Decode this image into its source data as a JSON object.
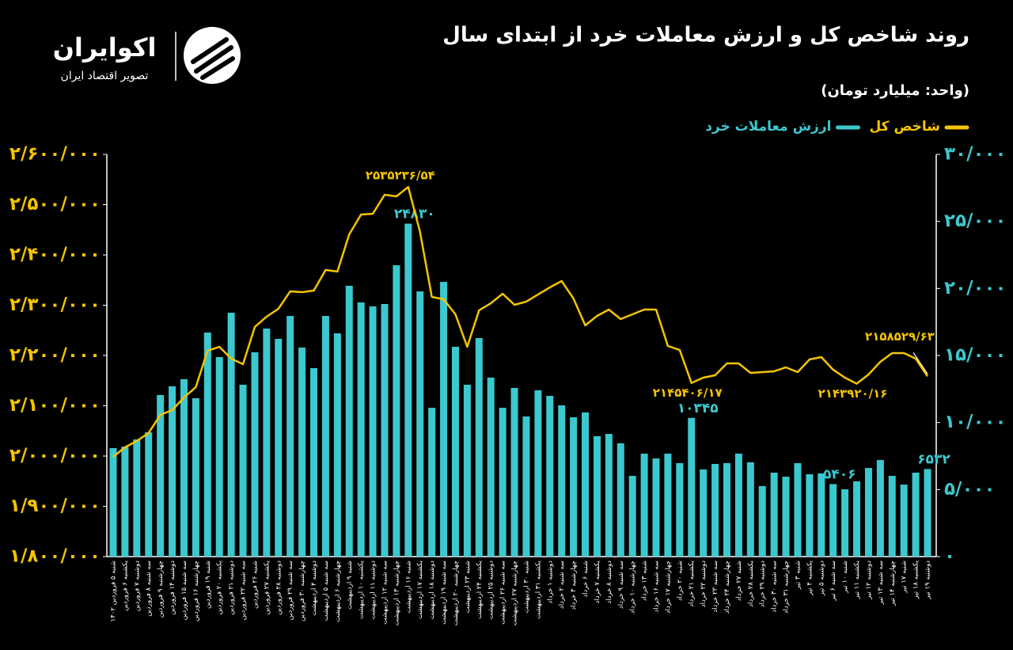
{
  "brand": {
    "name": "اکوایران",
    "tagline": "تصویر اقتصاد ایران"
  },
  "chart_data": {
    "type": "combo",
    "title": "روند شاخص کل و ارزش معاملات خرد از ابتدای سال",
    "subtitle": "(واحد: میلیارد تومان)",
    "categories": [
      "شنبه ۵ فروردین ۱۴۰۲",
      "یکشنبه ۶ فروردین",
      "دوشنبه ۷ فروردین",
      "سه شنبه ۸ فروردین",
      "چهارشنبه ۹ فروردین",
      "دوشنبه ۱۴ فروردین",
      "سه شنبه ۱۵ فروردین",
      "چهارشنبه ۱۶ فروردین",
      "شنبه ۱۹ فروردین",
      "یکشنبه ۲۰ فروردین",
      "دوشنبه ۲۱ فروردین",
      "سه شنبه ۲۲ فروردین",
      "شنبه ۲۶ فروردین",
      "یکشنبه ۲۷ فروردین",
      "دوشنبه ۲۸ فروردین",
      "سه شنبه ۲۹ فروردین",
      "چهارشنبه ۳۰ فروردین",
      "دوشنبه ۴ اردیبهشت",
      "سه شنبه ۵ اردیبهشت",
      "چهارشنبه ۶ اردیبهشت",
      "شنبه ۹ اردیبهشت",
      "یکشنبه ۱۰ اردیبهشت",
      "دوشنبه ۱۱ اردیبهشت",
      "سه شنبه ۱۲ اردیبهشت",
      "چهارشنبه ۱۳ اردیبهشت",
      "شنبه ۱۶ اردیبهشت",
      "یکشنبه ۱۷ اردیبهشت",
      "دوشنبه ۱۸ اردیبهشت",
      "سه شنبه ۱۹ اردیبهشت",
      "چهارشنبه ۲۰ اردیبهشت",
      "شنبه ۲۳ اردیبهشت",
      "یکشنبه ۲۴ اردیبهشت",
      "دوشنبه ۲۵ اردیبهشت",
      "سه شنبه ۲۶ اردیبهشت",
      "چهارشنبه ۲۷ اردیبهشت",
      "شنبه ۳۰ اردیبهشت",
      "یکشنبه ۳۱ اردیبهشت",
      "دوشنبه ۱ خرداد",
      "سه شنبه ۲ خرداد",
      "چهارشنبه ۳ خرداد",
      "شنبه ۶ خرداد",
      "یکشنبه ۷ خرداد",
      "دوشنبه ۸ خرداد",
      "سه شنبه ۹ خرداد",
      "چهارشنبه ۱۰ خرداد",
      "شنبه ۱۳ خرداد",
      "سه شنبه ۱۶ خرداد",
      "چهارشنبه ۱۷ خرداد",
      "شنبه ۲۰ خرداد",
      "یکشنبه ۲۱ خرداد",
      "دوشنبه ۲۲ خرداد",
      "سه شنبه ۲۳ خرداد",
      "چهارشنبه ۲۴ خرداد",
      "شنبه ۲۷ خرداد",
      "یکشنبه ۲۸ خرداد",
      "دوشنبه ۲۹ خرداد",
      "سه شنبه ۳۰ خرداد",
      "چهارشنبه ۳۱ خرداد",
      "شنبه ۳ تیر",
      "یکشنبه ۴ تیر",
      "دوشنبه ۵ تیر",
      "سه شنبه ۶ تیر",
      "شنبه ۱۰ تیر",
      "یکشنبه ۱۱ تیر",
      "دوشنبه ۱۲ تیر",
      "سه شنبه ۱۳ تیر",
      "چهارشنبه ۱۴ تیر",
      "شنبه ۱۷ تیر",
      "یکشنبه ۱۸ تیر",
      "دوشنبه ۱۹ تیر"
    ],
    "series": [
      {
        "name": "شاخص کل",
        "type": "line",
        "color": "#f5c400",
        "values": [
          1998400,
          2017300,
          2029900,
          2045700,
          2081900,
          2091300,
          2116500,
          2137000,
          2209400,
          2217300,
          2193700,
          2182700,
          2256700,
          2277200,
          2292900,
          2327600,
          2326000,
          2329100,
          2370100,
          2366900,
          2440900,
          2480300,
          2481900,
          2519700,
          2516500,
          2535236.54,
          2445700,
          2316500,
          2311800,
          2281900,
          2217300,
          2289800,
          2303900,
          2322800,
          2300800,
          2307100,
          2321300,
          2335400,
          2348000,
          2313400,
          2259800,
          2278700,
          2291300,
          2272400,
          2281900,
          2291300,
          2291300,
          2218900,
          2211000,
          2145406.17,
          2155900,
          2160600,
          2184300,
          2184300,
          2165400,
          2166900,
          2168500,
          2176400,
          2166900,
          2192100,
          2196900,
          2171700,
          2155900,
          2143920.16,
          2162200,
          2187400,
          2204700,
          2204700,
          2193700,
          2158529.63
        ],
        "value_labels": [
          null,
          null,
          null,
          null,
          null,
          null,
          null,
          null,
          null,
          null,
          null,
          null,
          null,
          null,
          null,
          null,
          null,
          null,
          null,
          null,
          null,
          null,
          null,
          null,
          null,
          "۲۵۳۵۲۳۶/۵۴",
          null,
          null,
          null,
          null,
          null,
          null,
          null,
          null,
          null,
          null,
          null,
          null,
          null,
          null,
          null,
          null,
          null,
          null,
          null,
          null,
          null,
          null,
          null,
          "۲۱۴۵۴۰۶/۱۷",
          null,
          null,
          null,
          null,
          null,
          null,
          null,
          null,
          null,
          null,
          null,
          null,
          null,
          "۲۱۴۳۹۲۰/۱۶",
          null,
          null,
          null,
          null,
          null,
          "۲۱۵۸۵۲۹/۶۳"
        ]
      },
      {
        "name": "ارزش معاملات خرد",
        "type": "bar",
        "axis": "y2",
        "color": "#3cc8cf",
        "values": [
          8090,
          8200,
          8740,
          9270,
          12050,
          12700,
          13230,
          11810,
          16710,
          14880,
          18190,
          12820,
          15240,
          17010,
          16240,
          17950,
          15590,
          14060,
          17950,
          16650,
          20200,
          18960,
          18660,
          18840,
          21730,
          24830,
          19780,
          11100,
          20490,
          15650,
          12820,
          16300,
          13350,
          11100,
          12580,
          10450,
          12400,
          11990,
          11280,
          10390,
          10750,
          8980,
          9150,
          8450,
          6020,
          7680,
          7320,
          7680,
          6970,
          10345,
          6500,
          6910,
          6970,
          7680,
          7030,
          5260,
          6260,
          5960,
          6970,
          6140,
          6200,
          5406,
          5020,
          5610,
          6610,
          7200,
          6020,
          5370,
          6260,
          6532
        ],
        "value_labels": [
          null,
          null,
          null,
          null,
          null,
          null,
          null,
          null,
          null,
          null,
          null,
          null,
          null,
          null,
          null,
          null,
          null,
          null,
          null,
          null,
          null,
          null,
          null,
          null,
          null,
          "۲۴۸۳۰",
          null,
          null,
          null,
          null,
          null,
          null,
          null,
          null,
          null,
          null,
          null,
          null,
          null,
          null,
          null,
          null,
          null,
          null,
          null,
          null,
          null,
          null,
          null,
          "۱۰۳۴۵",
          null,
          null,
          null,
          null,
          null,
          null,
          null,
          null,
          null,
          null,
          null,
          "۵۴۰۶",
          null,
          null,
          null,
          null,
          null,
          null,
          null,
          "۶۵۳۲"
        ]
      }
    ],
    "ylim": [
      1800000,
      2600000
    ],
    "yticks": [
      {
        "value": 1800000,
        "label": "۱/۸۰۰/۰۰۰"
      },
      {
        "value": 1900000,
        "label": "۱/۹۰۰/۰۰۰"
      },
      {
        "value": 2000000,
        "label": "۲/۰۰۰/۰۰۰"
      },
      {
        "value": 2100000,
        "label": "۲/۱۰۰/۰۰۰"
      },
      {
        "value": 2200000,
        "label": "۲/۲۰۰/۰۰۰"
      },
      {
        "value": 2300000,
        "label": "۲/۳۰۰/۰۰۰"
      },
      {
        "value": 2400000,
        "label": "۲/۴۰۰/۰۰۰"
      },
      {
        "value": 2500000,
        "label": "۲/۵۰۰/۰۰۰"
      },
      {
        "value": 2600000,
        "label": "۲/۶۰۰/۰۰۰"
      }
    ],
    "y2lim": [
      0,
      30000
    ],
    "y2ticks": [
      {
        "value": 0,
        "label": "۰"
      },
      {
        "value": 5000,
        "label": "۵/۰۰۰"
      },
      {
        "value": 10000,
        "label": "۱۰/۰۰۰"
      },
      {
        "value": 15000,
        "label": "۱۵/۰۰۰"
      },
      {
        "value": 20000,
        "label": "۲۰/۰۰۰"
      },
      {
        "value": 25000,
        "label": "۲۵/۰۰۰"
      },
      {
        "value": 30000,
        "label": "۳۰/۰۰۰"
      }
    ],
    "grid": false
  }
}
